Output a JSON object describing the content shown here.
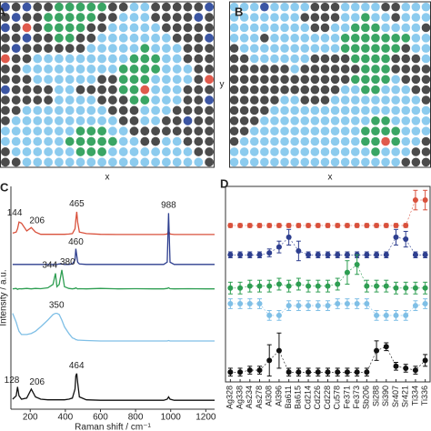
{
  "chart_data": [
    {
      "type": "map",
      "label": "A",
      "xlabel": "x",
      "colors": [
        "#4b4b4b",
        "#8ccbee",
        "#3aa564",
        "#3b55a3",
        "#e05a4c"
      ],
      "grid": [
        [
          3,
          0,
          3,
          0,
          0,
          2,
          2,
          2,
          2,
          2,
          0,
          0,
          1,
          1,
          0,
          0,
          0,
          0,
          0,
          3
        ],
        [
          0,
          3,
          0,
          0,
          2,
          2,
          2,
          2,
          2,
          0,
          0,
          1,
          1,
          1,
          0,
          0,
          0,
          0,
          3,
          0
        ],
        [
          3,
          0,
          4,
          0,
          2,
          2,
          2,
          2,
          0,
          0,
          1,
          1,
          1,
          1,
          1,
          0,
          0,
          0,
          0,
          0
        ],
        [
          0,
          0,
          3,
          0,
          0,
          2,
          2,
          0,
          0,
          1,
          1,
          1,
          1,
          1,
          1,
          1,
          0,
          0,
          0,
          3
        ],
        [
          0,
          3,
          0,
          0,
          0,
          0,
          0,
          0,
          1,
          1,
          1,
          1,
          1,
          2,
          1,
          1,
          1,
          0,
          0,
          0
        ],
        [
          4,
          0,
          0,
          1,
          1,
          1,
          1,
          1,
          1,
          1,
          1,
          1,
          2,
          2,
          2,
          1,
          1,
          0,
          0,
          0
        ],
        [
          0,
          0,
          1,
          1,
          1,
          1,
          1,
          1,
          1,
          1,
          1,
          2,
          2,
          2,
          2,
          1,
          1,
          1,
          0,
          0
        ],
        [
          0,
          0,
          0,
          1,
          1,
          1,
          1,
          1,
          1,
          0,
          0,
          2,
          2,
          2,
          1,
          1,
          1,
          1,
          0,
          4
        ],
        [
          3,
          0,
          0,
          0,
          0,
          1,
          1,
          0,
          0,
          0,
          0,
          2,
          2,
          4,
          1,
          1,
          1,
          0,
          0,
          0
        ],
        [
          0,
          0,
          0,
          0,
          0,
          1,
          1,
          1,
          1,
          0,
          0,
          0,
          2,
          2,
          1,
          1,
          1,
          0,
          0,
          3
        ],
        [
          0,
          0,
          1,
          1,
          1,
          1,
          1,
          1,
          1,
          1,
          0,
          0,
          0,
          1,
          1,
          1,
          0,
          0,
          0,
          0
        ],
        [
          0,
          1,
          1,
          1,
          1,
          1,
          1,
          1,
          1,
          1,
          1,
          0,
          0,
          1,
          1,
          0,
          0,
          3,
          0,
          0
        ],
        [
          1,
          1,
          1,
          1,
          1,
          1,
          1,
          2,
          2,
          2,
          1,
          1,
          0,
          0,
          0,
          0,
          0,
          0,
          0,
          0
        ],
        [
          1,
          1,
          1,
          1,
          1,
          1,
          2,
          2,
          2,
          2,
          2,
          1,
          1,
          0,
          0,
          1,
          1,
          0,
          0,
          0
        ],
        [
          0,
          1,
          1,
          1,
          1,
          1,
          1,
          2,
          2,
          2,
          1,
          1,
          1,
          1,
          1,
          1,
          1,
          1,
          0,
          0
        ],
        [
          0,
          0,
          1,
          1,
          1,
          1,
          1,
          1,
          1,
          1,
          1,
          1,
          1,
          1,
          1,
          1,
          1,
          1,
          1,
          0
        ]
      ]
    },
    {
      "type": "map",
      "label": "B",
      "xlabel": "x",
      "ylabel": "y",
      "colors": [
        "#4b4b4b",
        "#8ccbee",
        "#3aa564",
        "#3b55a3",
        "#e05a4c"
      ],
      "grid": [
        [
          1,
          1,
          1,
          3,
          1,
          1,
          1,
          1,
          0,
          0,
          0,
          1,
          1,
          1,
          1,
          0,
          0,
          1,
          1,
          1
        ],
        [
          1,
          1,
          1,
          1,
          1,
          1,
          1,
          0,
          0,
          0,
          0,
          1,
          1,
          2,
          1,
          1,
          0,
          1,
          1,
          1
        ],
        [
          1,
          1,
          1,
          1,
          1,
          1,
          1,
          1,
          0,
          0,
          1,
          1,
          2,
          2,
          2,
          1,
          1,
          1,
          1,
          0
        ],
        [
          1,
          1,
          1,
          0,
          1,
          1,
          1,
          1,
          1,
          1,
          1,
          2,
          2,
          2,
          2,
          2,
          2,
          2,
          1,
          1
        ],
        [
          0,
          1,
          1,
          1,
          1,
          1,
          1,
          1,
          1,
          1,
          1,
          2,
          2,
          2,
          2,
          2,
          2,
          0,
          1,
          1
        ],
        [
          0,
          0,
          1,
          1,
          1,
          1,
          1,
          1,
          0,
          0,
          0,
          0,
          2,
          2,
          2,
          2,
          0,
          0,
          0,
          1
        ],
        [
          0,
          0,
          0,
          0,
          0,
          0,
          1,
          0,
          0,
          0,
          0,
          0,
          0,
          2,
          2,
          2,
          0,
          0,
          0,
          0
        ],
        [
          0,
          0,
          0,
          0,
          0,
          0,
          0,
          0,
          0,
          0,
          0,
          0,
          2,
          2,
          2,
          2,
          1,
          0,
          0,
          0
        ],
        [
          0,
          0,
          0,
          0,
          0,
          0,
          0,
          0,
          0,
          0,
          0,
          1,
          1,
          2,
          2,
          1,
          1,
          1,
          0,
          0
        ],
        [
          0,
          0,
          0,
          0,
          0,
          1,
          1,
          0,
          0,
          0,
          1,
          1,
          1,
          1,
          1,
          1,
          1,
          1,
          1,
          0
        ],
        [
          0,
          0,
          0,
          0,
          1,
          1,
          1,
          1,
          1,
          1,
          1,
          1,
          1,
          1,
          1,
          1,
          1,
          1,
          1,
          1
        ],
        [
          0,
          0,
          0,
          1,
          1,
          1,
          1,
          1,
          1,
          1,
          1,
          1,
          1,
          1,
          2,
          2,
          1,
          1,
          1,
          1
        ],
        [
          0,
          0,
          1,
          1,
          1,
          1,
          1,
          1,
          1,
          1,
          1,
          1,
          1,
          2,
          2,
          2,
          2,
          1,
          1,
          1
        ],
        [
          0,
          1,
          1,
          1,
          1,
          1,
          1,
          1,
          1,
          1,
          1,
          1,
          1,
          2,
          2,
          4,
          2,
          1,
          1,
          0
        ],
        [
          1,
          1,
          1,
          1,
          1,
          1,
          1,
          1,
          1,
          1,
          1,
          1,
          1,
          1,
          2,
          1,
          1,
          1,
          0,
          0
        ],
        [
          1,
          1,
          1,
          1,
          1,
          1,
          1,
          1,
          1,
          1,
          1,
          1,
          1,
          1,
          1,
          1,
          1,
          0,
          0,
          0
        ]
      ]
    },
    {
      "type": "line",
      "label": "C",
      "xlabel": "Raman shift / cm⁻¹",
      "ylabel": "Intensity / a.u.",
      "xlim": [
        90,
        1250
      ],
      "ylim": [
        0,
        10
      ],
      "xticks": [
        200,
        400,
        600,
        800,
        1000,
        1200
      ],
      "x": [
        100,
        120,
        128,
        136,
        150,
        180,
        206,
        230,
        260,
        300,
        330,
        344,
        352,
        365,
        380,
        395,
        420,
        440,
        455,
        460,
        465,
        470,
        480,
        520,
        600,
        700,
        800,
        900,
        960,
        980,
        988,
        996,
        1020,
        1100,
        1200,
        1250
      ],
      "series": [
        {
          "color": "#d9513c",
          "values": [
            7.9,
            7.95,
            8.1,
            8.4,
            8.35,
            8.0,
            8.15,
            7.95,
            7.85,
            7.85,
            7.85,
            7.85,
            7.85,
            7.85,
            7.85,
            7.85,
            7.86,
            7.88,
            8.1,
            8.5,
            8.86,
            8.4,
            7.95,
            7.88,
            7.85,
            7.84,
            7.84,
            7.84,
            7.84,
            7.86,
            8.0,
            7.86,
            7.84,
            7.84,
            7.84,
            7.84
          ]
        },
        {
          "color": "#2e3f8f",
          "values": [
            6.5,
            6.5,
            6.5,
            6.5,
            6.5,
            6.5,
            6.5,
            6.5,
            6.5,
            6.5,
            6.5,
            6.5,
            6.5,
            6.52,
            6.52,
            6.5,
            6.5,
            6.52,
            6.7,
            7.2,
            6.9,
            6.6,
            6.52,
            6.5,
            6.5,
            6.5,
            6.5,
            6.5,
            6.5,
            6.6,
            8.8,
            6.6,
            6.5,
            6.5,
            6.5,
            6.5
          ]
        },
        {
          "color": "#2e9e52",
          "values": [
            5.4,
            5.42,
            5.38,
            5.41,
            5.4,
            5.42,
            5.4,
            5.42,
            5.41,
            5.45,
            5.6,
            6.1,
            5.5,
            5.6,
            6.25,
            5.5,
            5.42,
            5.4,
            5.42,
            5.45,
            5.42,
            5.4,
            5.41,
            5.4,
            5.42,
            5.4,
            5.41,
            5.4,
            5.4,
            5.42,
            5.45,
            5.41,
            5.4,
            5.41,
            5.4,
            5.4
          ]
        },
        {
          "color": "#7fbfe6",
          "values": [
            4.3,
            3.9,
            3.7,
            3.5,
            3.35,
            3.35,
            3.4,
            3.5,
            3.7,
            4.0,
            4.25,
            4.3,
            4.3,
            4.25,
            4.0,
            3.7,
            3.4,
            3.2,
            3.15,
            3.12,
            3.12,
            3.1,
            3.1,
            3.08,
            3.06,
            3.06,
            3.06,
            3.06,
            3.06,
            3.06,
            3.08,
            3.06,
            3.06,
            3.06,
            3.06,
            3.06
          ]
        },
        {
          "color": "#111111",
          "values": [
            0.45,
            0.6,
            1.0,
            0.6,
            0.45,
            0.5,
            0.9,
            0.55,
            0.45,
            0.42,
            0.42,
            0.42,
            0.42,
            0.42,
            0.42,
            0.42,
            0.45,
            0.5,
            0.9,
            1.5,
            1.6,
            1.2,
            0.55,
            0.42,
            0.4,
            0.4,
            0.4,
            0.4,
            0.4,
            0.45,
            0.55,
            0.45,
            0.4,
            0.4,
            0.4,
            0.4
          ]
        }
      ],
      "peaks": [
        {
          "x": 144,
          "y": 8.8
        },
        {
          "x": 206,
          "y": 8.45
        },
        {
          "x": 465,
          "y": 9.2
        },
        {
          "x": 460,
          "y": 7.5
        },
        {
          "x": 988,
          "y": 9.15
        },
        {
          "x": 344,
          "y": 6.45
        },
        {
          "x": 380,
          "y": 6.6
        },
        {
          "x": 350,
          "y": 4.65
        },
        {
          "x": 128,
          "y": 1.3
        },
        {
          "x": 206,
          "y": 1.2
        },
        {
          "x": 464,
          "y": 1.95
        }
      ]
    },
    {
      "type": "errorbar",
      "label": "D",
      "ylim": [
        0,
        10
      ],
      "categories": [
        "Ag328",
        "Ag338",
        "As234",
        "As278",
        "Al308",
        "Al396",
        "Ba611",
        "Ba615",
        "Cd214",
        "Cd226",
        "Cd228",
        "Cu578",
        "Fe371",
        "Fe373",
        "Sb206",
        "Si288",
        "Si390",
        "Sr407",
        "Sr421",
        "Ti334",
        "Ti336"
      ],
      "series": [
        {
          "color": "#d9513c",
          "values": [
            8,
            8,
            8,
            8,
            8,
            8,
            8,
            8,
            8,
            8,
            8,
            8,
            8,
            8,
            8,
            8,
            8,
            8,
            8,
            9.3,
            9.3
          ],
          "errors": [
            0.1,
            0.1,
            0.1,
            0.1,
            0.1,
            0.1,
            0.1,
            0.1,
            0.1,
            0.1,
            0.1,
            0.1,
            0.1,
            0.1,
            0.1,
            0.1,
            0.1,
            0.1,
            0.1,
            0.5,
            0.5
          ]
        },
        {
          "color": "#2e3f8f",
          "values": [
            6.5,
            6.5,
            6.5,
            6.5,
            6.6,
            6.9,
            7.4,
            6.7,
            6.5,
            6.5,
            6.5,
            6.5,
            6.5,
            6.5,
            6.5,
            6.5,
            6.5,
            7.4,
            7.3,
            6.5,
            6.5
          ],
          "errors": [
            0.15,
            0.15,
            0.15,
            0.15,
            0.2,
            0.3,
            0.4,
            0.5,
            0.15,
            0.15,
            0.15,
            0.15,
            0.15,
            0.15,
            0.15,
            0.15,
            0.15,
            0.4,
            0.4,
            0.15,
            0.15
          ]
        },
        {
          "color": "#2e9e52",
          "values": [
            4.8,
            4.8,
            4.9,
            4.9,
            4.9,
            5.0,
            4.9,
            5.0,
            4.9,
            4.9,
            4.9,
            5.0,
            5.6,
            6.0,
            4.9,
            4.9,
            4.9,
            4.8,
            4.8,
            4.8,
            4.8
          ],
          "errors": [
            0.3,
            0.3,
            0.3,
            0.3,
            0.3,
            0.3,
            0.3,
            0.3,
            0.3,
            0.3,
            0.3,
            0.3,
            0.6,
            0.5,
            0.3,
            0.3,
            0.3,
            0.3,
            0.3,
            0.3,
            0.3
          ]
        },
        {
          "color": "#7fbfe6",
          "values": [
            4.0,
            4.0,
            4.0,
            4.0,
            3.4,
            3.4,
            3.9,
            3.9,
            3.9,
            3.9,
            3.9,
            4.0,
            4.0,
            4.0,
            4.0,
            3.4,
            3.4,
            3.4,
            3.4,
            3.9,
            4.0
          ],
          "errors": [
            0.25,
            0.25,
            0.25,
            0.25,
            0.25,
            0.25,
            0.25,
            0.25,
            0.25,
            0.25,
            0.25,
            0.25,
            0.25,
            0.25,
            0.25,
            0.25,
            0.25,
            0.25,
            0.25,
            0.25,
            0.25
          ]
        },
        {
          "color": "#111111",
          "values": [
            0.5,
            0.5,
            0.6,
            0.6,
            1.1,
            1.6,
            0.5,
            0.5,
            0.5,
            0.5,
            0.5,
            0.5,
            0.5,
            0.5,
            0.5,
            1.6,
            1.8,
            0.8,
            0.7,
            0.6,
            1.1
          ],
          "errors": [
            0.2,
            0.2,
            0.2,
            0.2,
            0.8,
            0.9,
            0.2,
            0.2,
            0.2,
            0.2,
            0.2,
            0.2,
            0.2,
            0.2,
            0.2,
            0.5,
            0.2,
            0.2,
            0.2,
            0.2,
            0.3
          ]
        }
      ]
    }
  ]
}
